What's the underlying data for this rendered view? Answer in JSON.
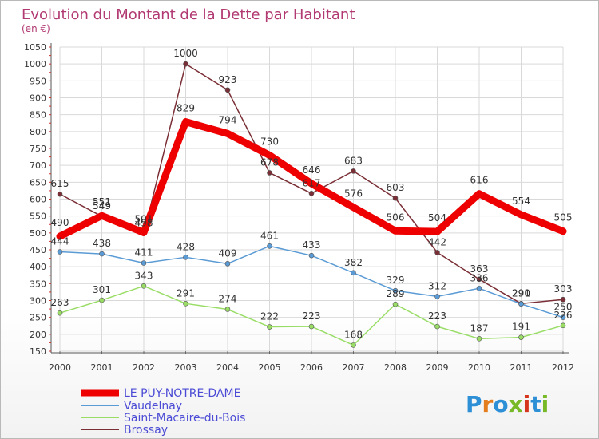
{
  "chart_data": {
    "type": "line",
    "title": "Evolution du Montant de la Dette par Habitant",
    "subtitle": "(en €)",
    "x": [
      "2000",
      "2001",
      "2002",
      "2003",
      "2004",
      "2005",
      "2006",
      "2007",
      "2008",
      "2009",
      "2010",
      "2011",
      "2012"
    ],
    "ylim": [
      150,
      1050
    ],
    "yticks": [
      150,
      200,
      250,
      300,
      350,
      400,
      450,
      500,
      550,
      600,
      650,
      700,
      750,
      800,
      850,
      900,
      950,
      1000,
      1050
    ],
    "grid": true,
    "legend_position": "bottom-left",
    "series": [
      {
        "name": "LE PUY-NOTRE-DAME",
        "color": "#ee0000",
        "values": [
          490,
          551,
          501,
          829,
          794,
          730,
          646,
          576,
          506,
          504,
          616,
          554,
          505
        ]
      },
      {
        "name": "Vaudelnay",
        "color": "#5b9bd5",
        "values": [
          444,
          438,
          411,
          428,
          409,
          461,
          433,
          382,
          329,
          312,
          336,
          290,
          250
        ]
      },
      {
        "name": "Saint-Macaire-du-Bois",
        "color": "#99dd66",
        "values": [
          263,
          301,
          343,
          291,
          274,
          222,
          223,
          168,
          289,
          223,
          187,
          191,
          226
        ]
      },
      {
        "name": "Brossay",
        "color": "#7a2e35",
        "values": [
          615,
          549,
          498,
          1000,
          923,
          678,
          617,
          683,
          603,
          442,
          363,
          291,
          303
        ]
      }
    ]
  },
  "branding": {
    "logo_text": "Proxiti",
    "logo_colors": [
      "#2d8fd5",
      "#e47d1e",
      "#2d8fd5",
      "#78b928",
      "#d4351c",
      "#2d8fd5",
      "#78b928"
    ]
  }
}
